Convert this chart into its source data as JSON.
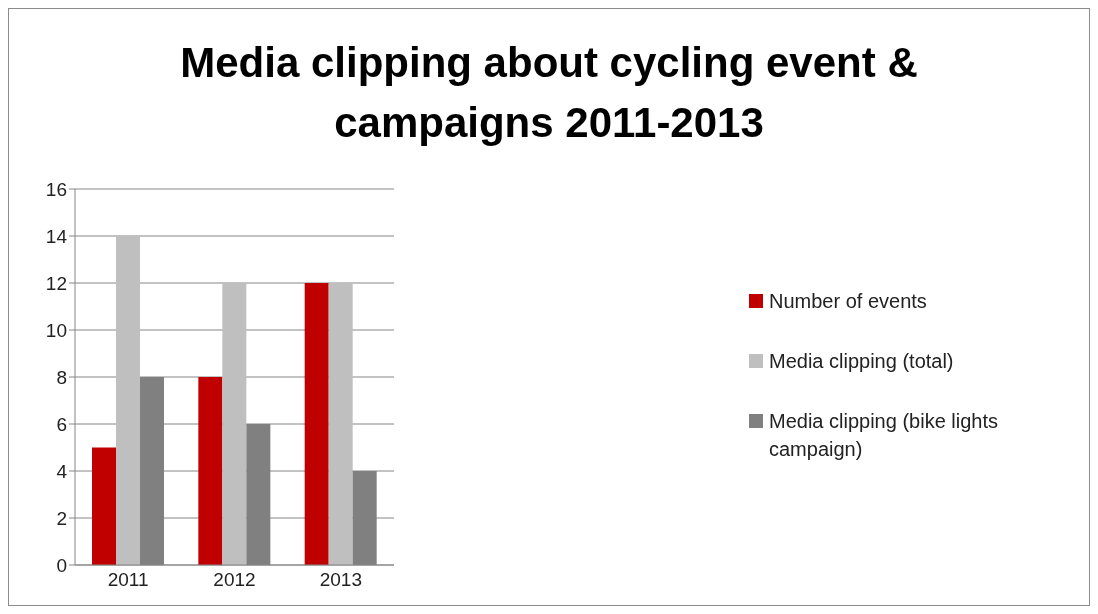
{
  "chart_data": {
    "type": "bar",
    "title": "Media clipping about cycling event & campaigns 2011-2013",
    "categories": [
      "2011",
      "2012",
      "2013"
    ],
    "series": [
      {
        "name": "Number of events",
        "color": "#c00000",
        "values": [
          5,
          8,
          12
        ]
      },
      {
        "name": "Media clipping (total)",
        "color": "#bfbfbf",
        "values": [
          14,
          12,
          12
        ]
      },
      {
        "name": "Media clipping (bike lights campaign)",
        "color": "#808080",
        "values": [
          8,
          6,
          4
        ]
      }
    ],
    "ylim": [
      0,
      16
    ],
    "yticks": [
      0,
      2,
      4,
      6,
      8,
      10,
      12,
      14,
      16
    ],
    "grid": "y",
    "legend": "right"
  }
}
